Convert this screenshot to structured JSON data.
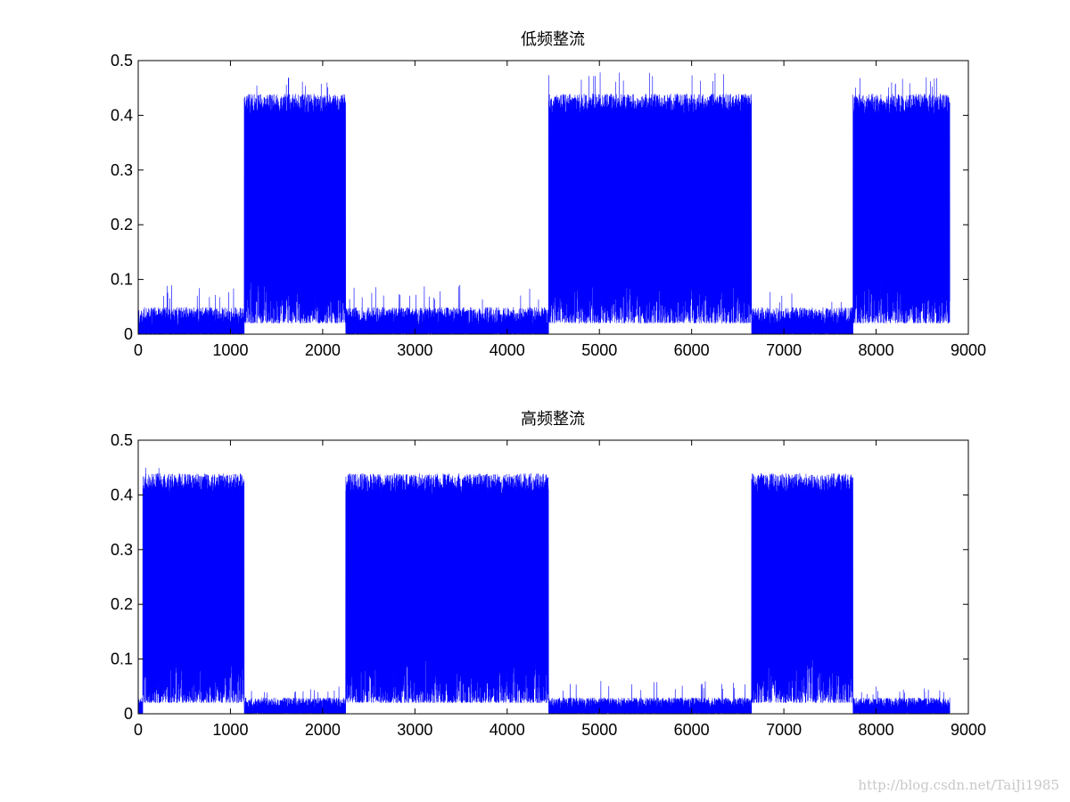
{
  "chart_data": [
    {
      "type": "line",
      "title": "低频整流",
      "xlabel": "",
      "ylabel": "",
      "xlim": [
        0,
        9000
      ],
      "ylim": [
        0,
        0.5
      ],
      "xticks": [
        0,
        1000,
        2000,
        3000,
        4000,
        5000,
        6000,
        7000,
        8000,
        9000
      ],
      "yticks": [
        0,
        0.1,
        0.2,
        0.3,
        0.4,
        0.5
      ],
      "xtick_labels": [
        "0",
        "1000",
        "2000",
        "3000",
        "4000",
        "5000",
        "6000",
        "7000",
        "8000",
        "9000"
      ],
      "ytick_labels": [
        "0",
        "0.1",
        "0.2",
        "0.3",
        "0.4",
        "0.5"
      ],
      "grid": false,
      "line_color": "#0000ff",
      "n_points": 8800,
      "segments": [
        {
          "x_start": 0,
          "x_end": 1150,
          "level": "low",
          "typical_max": 0.05,
          "peak": 0.09
        },
        {
          "x_start": 1150,
          "x_end": 2250,
          "level": "high",
          "typical_max": 0.42,
          "peak": 0.47
        },
        {
          "x_start": 2250,
          "x_end": 4450,
          "level": "low",
          "typical_max": 0.05,
          "peak": 0.09
        },
        {
          "x_start": 4450,
          "x_end": 6650,
          "level": "high",
          "typical_max": 0.42,
          "peak": 0.48
        },
        {
          "x_start": 6650,
          "x_end": 7750,
          "level": "low",
          "typical_max": 0.05,
          "peak": 0.08
        },
        {
          "x_start": 7750,
          "x_end": 8800,
          "level": "high",
          "typical_max": 0.42,
          "peak": 0.47
        }
      ]
    },
    {
      "type": "line",
      "title": "高频整流",
      "xlabel": "",
      "ylabel": "",
      "xlim": [
        0,
        9000
      ],
      "ylim": [
        0,
        0.5
      ],
      "xticks": [
        0,
        1000,
        2000,
        3000,
        4000,
        5000,
        6000,
        7000,
        8000,
        9000
      ],
      "yticks": [
        0,
        0.1,
        0.2,
        0.3,
        0.4,
        0.5
      ],
      "xtick_labels": [
        "0",
        "1000",
        "2000",
        "3000",
        "4000",
        "5000",
        "6000",
        "7000",
        "8000",
        "9000"
      ],
      "ytick_labels": [
        "0",
        "0.1",
        "0.2",
        "0.3",
        "0.4",
        "0.5"
      ],
      "grid": false,
      "line_color": "#0000ff",
      "n_points": 8800,
      "segments": [
        {
          "x_start": 0,
          "x_end": 50,
          "level": "low",
          "typical_max": 0.03,
          "peak": 0.05
        },
        {
          "x_start": 50,
          "x_end": 1150,
          "level": "high",
          "typical_max": 0.42,
          "peak": 0.45
        },
        {
          "x_start": 1150,
          "x_end": 2250,
          "level": "low",
          "typical_max": 0.03,
          "peak": 0.05
        },
        {
          "x_start": 2250,
          "x_end": 4450,
          "level": "high",
          "typical_max": 0.42,
          "peak": 0.44
        },
        {
          "x_start": 4450,
          "x_end": 6650,
          "level": "low",
          "typical_max": 0.03,
          "peak": 0.06
        },
        {
          "x_start": 6650,
          "x_end": 7750,
          "level": "high",
          "typical_max": 0.42,
          "peak": 0.44
        },
        {
          "x_start": 7750,
          "x_end": 8800,
          "level": "low",
          "typical_max": 0.03,
          "peak": 0.05
        }
      ]
    }
  ],
  "watermark": "http://blog.csdn.net/TaiJi1985"
}
